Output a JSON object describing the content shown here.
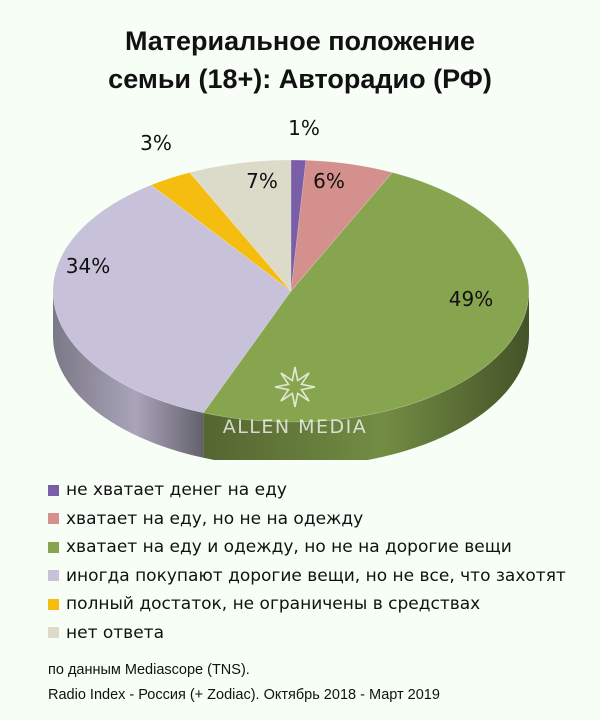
{
  "chart_data": {
    "type": "pie",
    "title": [
      "Материальное положение",
      "семьи (18+): Авторадио (РФ)"
    ],
    "slices": [
      {
        "label": "не хватает денег на еду",
        "value": 1,
        "data_label": "1%",
        "color": "#7b5ea8"
      },
      {
        "label": "хватает на еду, но не на одежду",
        "value": 6,
        "data_label": "6%",
        "color": "#d4908c"
      },
      {
        "label": "хватает на еду и одежду, но не на дорогие вещи",
        "value": 49,
        "data_label": "49%",
        "color": "#87a54f"
      },
      {
        "label": "иногда покупают дорогие вещи, но не все, что захотят",
        "value": 34,
        "data_label": "34%",
        "color": "#c7c1da"
      },
      {
        "label": "полный достаток, не ограничены в средствах",
        "value": 3,
        "data_label": "3%",
        "color": "#f5bd0f"
      },
      {
        "label": "нет ответа",
        "value": 7,
        "data_label": "7%",
        "color": "#dcdac8"
      }
    ],
    "legend_position": "bottom-left",
    "watermark": "ALLEN MEDIA"
  },
  "source": {
    "line1": "по данным Mediascope (TNS).",
    "line2": "Radio Index - Россия (+ Zodiac). Октябрь 2018 - Март 2019"
  }
}
